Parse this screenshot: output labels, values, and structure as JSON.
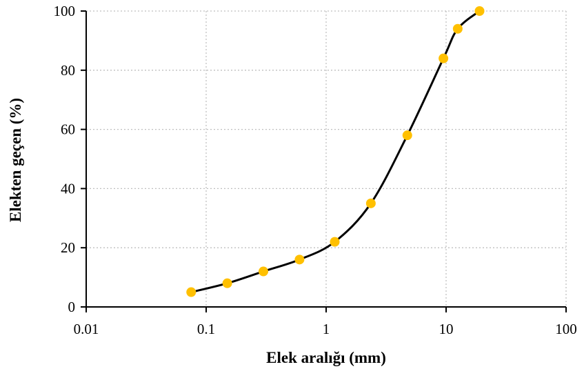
{
  "chart_data": {
    "type": "scatter",
    "title": "",
    "xlabel": "Elek aralığı (mm)",
    "ylabel": "Elekten geçen (%)",
    "xscale": "log",
    "xlim": [
      0.01,
      100
    ],
    "ylim": [
      0,
      100
    ],
    "x_ticks": [
      0.01,
      0.1,
      1,
      10,
      100
    ],
    "x_tick_labels": [
      "0.01",
      "0.1",
      "1",
      "10",
      "100"
    ],
    "y_ticks": [
      0,
      20,
      40,
      60,
      80,
      100
    ],
    "y_tick_labels": [
      "0",
      "20",
      "40",
      "60",
      "80",
      "100"
    ],
    "grid": "dotted",
    "legend": "none",
    "line_color": "#000000",
    "marker_color": "#FFC000",
    "series": [
      {
        "x": [
          0.075,
          0.15,
          0.3,
          0.6,
          1.18,
          2.36,
          4.75,
          9.5,
          12.5,
          19
        ],
        "y": [
          5,
          8,
          12,
          16,
          22,
          35,
          58,
          84,
          94,
          100
        ]
      }
    ]
  }
}
